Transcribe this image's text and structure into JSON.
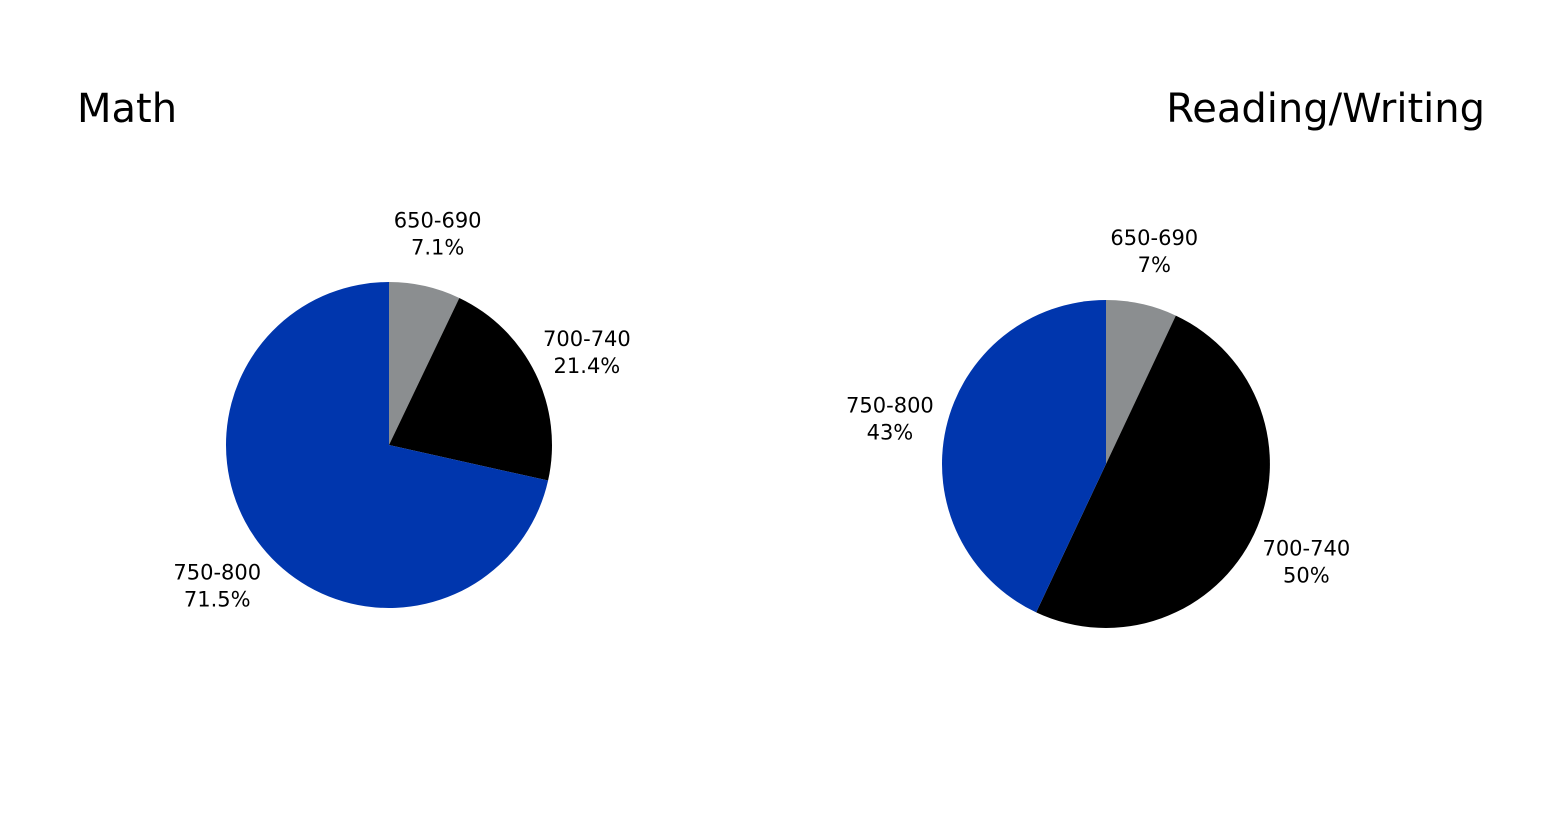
{
  "chart_data": [
    {
      "type": "pie",
      "title": "Math",
      "categories": [
        "650-690",
        "700-740",
        "750-800"
      ],
      "values": [
        7.1,
        21.4,
        71.5
      ],
      "value_labels": [
        "7.1%",
        "21.4%",
        "71.5%"
      ],
      "colors": [
        "#8b8e90",
        "#000000",
        "#0036ad"
      ]
    },
    {
      "type": "pie",
      "title": "Reading/Writing",
      "categories": [
        "650-690",
        "700-740",
        "750-800"
      ],
      "values": [
        7,
        50,
        43
      ],
      "value_labels": [
        "7%",
        "50%",
        "43%"
      ],
      "colors": [
        "#8b8e90",
        "#000000",
        "#0036ad"
      ]
    }
  ]
}
